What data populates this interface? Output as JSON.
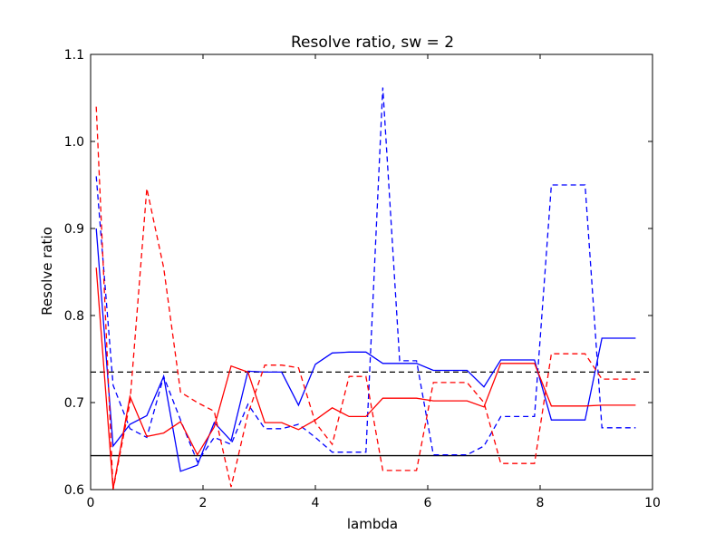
{
  "chart_data": {
    "type": "line",
    "title": "Resolve ratio, sw = 2",
    "xlabel": "lambda",
    "ylabel": "Resolve ratio",
    "xlim": [
      0,
      10
    ],
    "ylim": [
      0.6,
      1.1
    ],
    "xticks": [
      "0",
      "2",
      "4",
      "6",
      "8",
      "10"
    ],
    "yticks": [
      "0.6",
      "0.7",
      "0.8",
      "0.9",
      "1.0",
      "1.1"
    ],
    "grid": false,
    "series": [
      {
        "color": "#0000ff",
        "style": "solid",
        "x": [
          0.1,
          0.4,
          0.7,
          1.0,
          1.3,
          1.6,
          1.9,
          2.2,
          2.5,
          2.8,
          3.1,
          3.4,
          3.7,
          4.0,
          4.3,
          4.6,
          4.9,
          5.2,
          5.5,
          5.8,
          6.1,
          6.4,
          6.7,
          7.0,
          7.3,
          7.6,
          7.9,
          8.2,
          8.5,
          8.8,
          9.1,
          9.4,
          9.7
        ],
        "y": [
          0.9,
          0.65,
          0.675,
          0.685,
          0.73,
          0.621,
          0.628,
          0.677,
          0.656,
          0.736,
          0.735,
          0.735,
          0.697,
          0.744,
          0.757,
          0.758,
          0.758,
          0.745,
          0.745,
          0.745,
          0.737,
          0.737,
          0.737,
          0.718,
          0.749,
          0.749,
          0.749,
          0.68,
          0.68,
          0.68,
          0.774,
          0.774,
          0.774
        ]
      },
      {
        "color": "#0000ff",
        "style": "dashed",
        "x": [
          0.1,
          0.4,
          0.7,
          1.0,
          1.3,
          1.6,
          1.9,
          2.2,
          2.5,
          2.8,
          3.1,
          3.4,
          3.7,
          4.0,
          4.3,
          4.6,
          4.9,
          5.2,
          5.5,
          5.8,
          6.1,
          6.4,
          6.7,
          7.0,
          7.3,
          7.6,
          7.9,
          8.2,
          8.5,
          8.8,
          9.1,
          9.4,
          9.7
        ],
        "y": [
          0.96,
          0.72,
          0.67,
          0.66,
          0.73,
          0.68,
          0.632,
          0.66,
          0.652,
          0.698,
          0.67,
          0.67,
          0.675,
          0.66,
          0.643,
          0.643,
          0.643,
          1.062,
          0.748,
          0.748,
          0.64,
          0.64,
          0.64,
          0.65,
          0.684,
          0.684,
          0.684,
          0.95,
          0.95,
          0.95,
          0.671,
          0.671,
          0.671
        ]
      },
      {
        "color": "#ff0000",
        "style": "solid",
        "x": [
          0.1,
          0.4,
          0.7,
          1.0,
          1.3,
          1.6,
          1.9,
          2.2,
          2.5,
          2.8,
          3.1,
          3.4,
          3.7,
          4.0,
          4.3,
          4.6,
          4.9,
          5.2,
          5.5,
          5.8,
          6.1,
          6.4,
          6.7,
          7.0,
          7.3,
          7.6,
          7.9,
          8.2,
          8.5,
          8.8,
          9.1,
          9.4,
          9.7
        ],
        "y": [
          0.855,
          0.601,
          0.707,
          0.661,
          0.665,
          0.678,
          0.64,
          0.672,
          0.742,
          0.735,
          0.677,
          0.677,
          0.669,
          0.68,
          0.694,
          0.684,
          0.684,
          0.705,
          0.705,
          0.705,
          0.702,
          0.702,
          0.702,
          0.695,
          0.745,
          0.745,
          0.745,
          0.696,
          0.696,
          0.696,
          0.697,
          0.697,
          0.697
        ]
      },
      {
        "color": "#ff0000",
        "style": "dashed",
        "x": [
          0.1,
          0.4,
          0.7,
          1.0,
          1.3,
          1.6,
          1.9,
          2.2,
          2.5,
          2.8,
          3.1,
          3.4,
          3.7,
          4.0,
          4.3,
          4.6,
          4.9,
          5.2,
          5.5,
          5.8,
          6.1,
          6.4,
          6.7,
          7.0,
          7.3,
          7.6,
          7.9,
          8.2,
          8.5,
          8.8,
          9.1,
          9.4,
          9.7
        ],
        "y": [
          1.04,
          0.6,
          0.7,
          0.946,
          0.855,
          0.712,
          0.7,
          0.69,
          0.603,
          0.687,
          0.743,
          0.743,
          0.74,
          0.677,
          0.652,
          0.73,
          0.73,
          0.622,
          0.622,
          0.622,
          0.723,
          0.723,
          0.723,
          0.7,
          0.63,
          0.63,
          0.63,
          0.756,
          0.756,
          0.756,
          0.727,
          0.727,
          0.727
        ]
      }
    ],
    "hlines": [
      {
        "y": 0.735,
        "color": "#000000",
        "style": "dashed"
      },
      {
        "y": 0.639,
        "color": "#000000",
        "style": "solid"
      }
    ]
  }
}
